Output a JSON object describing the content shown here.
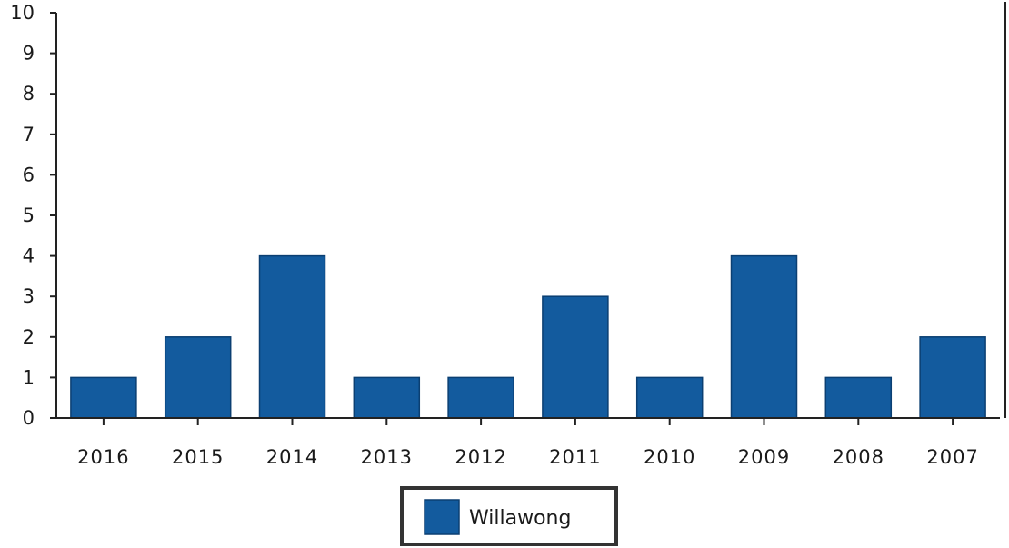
{
  "chart_data": {
    "type": "bar",
    "categories": [
      "2016",
      "2015",
      "2014",
      "2013",
      "2012",
      "2011",
      "2010",
      "2009",
      "2008",
      "2007"
    ],
    "series": [
      {
        "name": "Willawong",
        "values": [
          1,
          2,
          4,
          1,
          1,
          3,
          1,
          4,
          1,
          2
        ],
        "color": "#135b9e"
      }
    ],
    "ylim": [
      0,
      10
    ],
    "yticks": [
      "0",
      "1",
      "2",
      "3",
      "4",
      "5",
      "6",
      "7",
      "8",
      "9",
      "10"
    ],
    "title": "",
    "xlabel": "",
    "ylabel": "",
    "grid": false,
    "legend_position": "bottom-center"
  }
}
